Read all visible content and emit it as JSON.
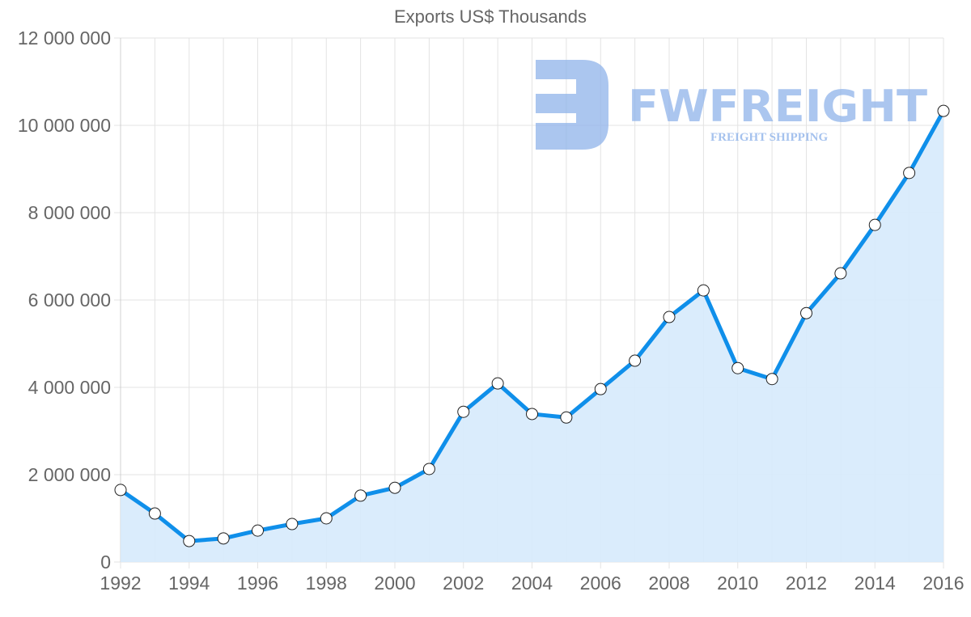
{
  "chart_data": {
    "type": "area",
    "title": "Exports US$ Thousands",
    "xlabel": "",
    "ylabel": "",
    "categories": [
      1992,
      1993,
      1994,
      1995,
      1996,
      1997,
      1998,
      1999,
      2000,
      2001,
      2002,
      2003,
      2004,
      2005,
      2006,
      2007,
      2008,
      2009,
      2010,
      2011,
      2012,
      2013,
      2014,
      2015,
      2016
    ],
    "series": [
      {
        "name": "Exports US$ Thousands",
        "color": "#0f8fea",
        "fill": "#d6eafc",
        "values": [
          1650000,
          1110000,
          480000,
          540000,
          720000,
          870000,
          1000000,
          1520000,
          1700000,
          2130000,
          3440000,
          4090000,
          3390000,
          3310000,
          3960000,
          4610000,
          5610000,
          6220000,
          4440000,
          4190000,
          5700000,
          6610000,
          7720000,
          8910000,
          10330000
        ]
      }
    ],
    "ylim": [
      0,
      12000000
    ],
    "yticks": [
      0,
      2000000,
      4000000,
      6000000,
      8000000,
      10000000,
      12000000
    ],
    "ytick_labels": [
      "0",
      "2 000 000",
      "4 000 000",
      "6 000 000",
      "8 000 000",
      "10 000 000",
      "12 000 000"
    ],
    "xtick_labels": [
      "1992",
      "1994",
      "1996",
      "1998",
      "2000",
      "2002",
      "2004",
      "2006",
      "2008",
      "2010",
      "2012",
      "2014",
      "2016"
    ],
    "grid": true,
    "legend": "none"
  },
  "watermark": {
    "brand": "FWFREIGHT",
    "tagline": "FREIGHT SHIPPING",
    "color": "#8fb3ea"
  }
}
